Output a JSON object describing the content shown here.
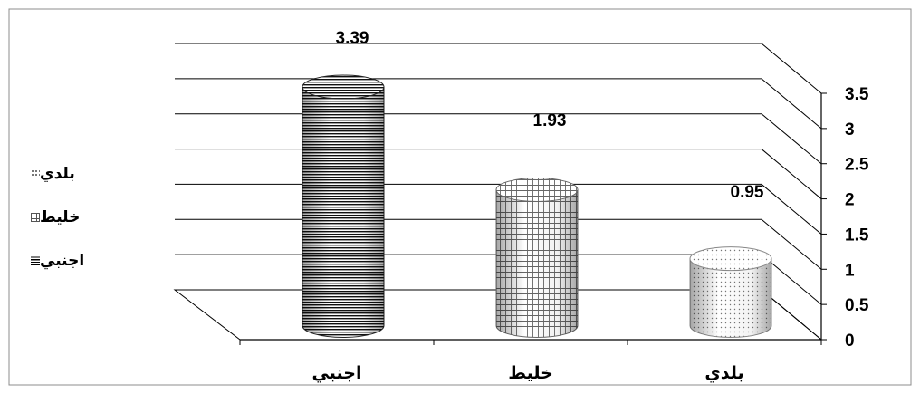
{
  "chart_data": {
    "type": "bar",
    "categories": [
      "اجنبي",
      "خليط",
      "بلدي"
    ],
    "values": [
      3.39,
      1.93,
      0.95
    ],
    "data_labels": [
      "3.39",
      "1.93",
      "0.95"
    ],
    "ylim": [
      0,
      3.5
    ],
    "y_ticks": [
      "0",
      "0.5",
      "1",
      "1.5",
      "2",
      "2.5",
      "3",
      "3.5"
    ],
    "legend": [
      {
        "label": "بلدي",
        "pattern": "dots"
      },
      {
        "label": "خليط",
        "pattern": "grid"
      },
      {
        "label": "اجنبي",
        "pattern": "lines"
      }
    ],
    "legend_position": "left",
    "grid": true,
    "style": "3d-cylinder",
    "axis_side": "right",
    "colors": {
      "bar_dark": "#111111",
      "bar_mid": "#555555",
      "bar_light": "#888888",
      "grid": "#000000"
    }
  }
}
